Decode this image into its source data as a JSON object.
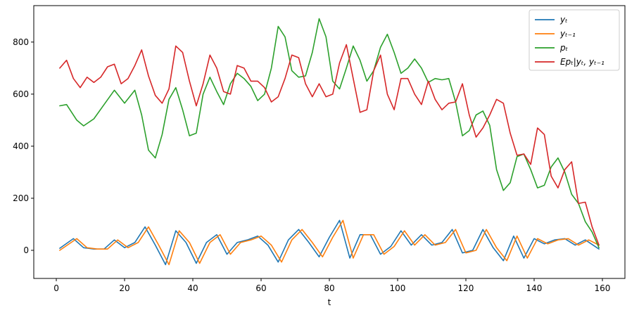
{
  "chart_data": {
    "type": "line",
    "title": "",
    "xlabel": "t",
    "ylabel": "",
    "xlim": [
      -6.6,
      166.6
    ],
    "ylim": [
      -108,
      940
    ],
    "xticks": [
      0,
      20,
      40,
      60,
      80,
      100,
      120,
      140,
      160
    ],
    "yticks": [
      0,
      200,
      400,
      600,
      800
    ],
    "grid": false,
    "legend_position": "top-right",
    "series": [
      {
        "name": "y_t",
        "legend_label": "yₜ",
        "color": "#1f77b4",
        "x": [
          1,
          5,
          8,
          11,
          14,
          17,
          20,
          23,
          26,
          29,
          32,
          35,
          38,
          41,
          44,
          47,
          50,
          53,
          56,
          59,
          62,
          65,
          68,
          71,
          74,
          77,
          80,
          83,
          86,
          89,
          92,
          95,
          98,
          101,
          104,
          107,
          110,
          113,
          116,
          119,
          122,
          125,
          128,
          131,
          134,
          137,
          140,
          143,
          146,
          149,
          152,
          155,
          159
        ],
        "y": [
          8,
          45,
          10,
          5,
          5,
          40,
          10,
          30,
          90,
          20,
          -55,
          75,
          30,
          -50,
          30,
          60,
          -15,
          30,
          40,
          55,
          20,
          -45,
          40,
          80,
          30,
          -25,
          50,
          115,
          -30,
          60,
          60,
          -15,
          15,
          75,
          20,
          60,
          20,
          30,
          80,
          -10,
          0,
          80,
          10,
          -40,
          55,
          -30,
          45,
          25,
          40,
          45,
          20,
          40,
          5
        ]
      },
      {
        "name": "y_{t-1}",
        "legend_label": "yₜ₋₁",
        "color": "#ff7f0e",
        "x": [
          1,
          6,
          9,
          12,
          15,
          18,
          21,
          24,
          27,
          30,
          33,
          36,
          39,
          42,
          45,
          48,
          51,
          54,
          57,
          60,
          63,
          66,
          69,
          72,
          75,
          78,
          81,
          84,
          87,
          90,
          93,
          96,
          99,
          102,
          105,
          108,
          111,
          114,
          117,
          120,
          123,
          126,
          129,
          132,
          135,
          138,
          141,
          144,
          147,
          150,
          153,
          156,
          159
        ],
        "y": [
          0,
          45,
          10,
          5,
          5,
          40,
          10,
          30,
          90,
          20,
          -55,
          75,
          30,
          -50,
          30,
          60,
          -15,
          30,
          40,
          55,
          20,
          -45,
          40,
          80,
          30,
          -25,
          50,
          115,
          -30,
          60,
          60,
          -15,
          15,
          75,
          20,
          60,
          20,
          30,
          80,
          -10,
          0,
          80,
          10,
          -40,
          55,
          -30,
          45,
          25,
          40,
          45,
          20,
          40,
          20
        ]
      },
      {
        "name": "p_t",
        "legend_label": "pₜ",
        "color": "#2ca02c",
        "x": [
          1,
          3,
          6,
          8,
          11,
          14,
          17,
          20,
          23,
          25,
          27,
          29,
          31,
          33,
          35,
          37,
          39,
          41,
          43,
          45,
          47,
          49,
          51,
          53,
          55,
          57,
          59,
          61,
          63,
          65,
          67,
          69,
          71,
          73,
          75,
          77,
          79,
          81,
          83,
          85,
          87,
          89,
          91,
          93,
          95,
          97,
          99,
          101,
          103,
          105,
          107,
          109,
          111,
          113,
          115,
          117,
          119,
          121,
          123,
          125,
          127,
          129,
          131,
          133,
          135,
          137,
          139,
          141,
          143,
          145,
          147,
          149,
          151,
          153,
          155,
          157,
          159
        ],
        "y": [
          555,
          560,
          500,
          478,
          505,
          560,
          615,
          565,
          615,
          520,
          385,
          355,
          445,
          580,
          625,
          540,
          440,
          450,
          600,
          665,
          610,
          560,
          640,
          680,
          660,
          630,
          575,
          600,
          700,
          860,
          820,
          690,
          665,
          670,
          760,
          890,
          820,
          650,
          620,
          700,
          785,
          730,
          650,
          690,
          780,
          830,
          760,
          680,
          700,
          735,
          700,
          645,
          660,
          655,
          660,
          570,
          440,
          460,
          520,
          535,
          480,
          310,
          230,
          260,
          360,
          370,
          310,
          240,
          250,
          320,
          355,
          300,
          215,
          180,
          110,
          70,
          10
        ]
      },
      {
        "name": "Ep_t|y_t, y_{t-1}",
        "legend_label": "Epₜ|yₜ, yₜ₋₁",
        "color": "#d62728",
        "x": [
          1,
          3,
          5,
          7,
          9,
          11,
          13,
          15,
          17,
          19,
          21,
          23,
          25,
          27,
          29,
          31,
          33,
          35,
          37,
          39,
          41,
          43,
          45,
          47,
          49,
          51,
          53,
          55,
          57,
          59,
          61,
          63,
          65,
          67,
          69,
          71,
          73,
          75,
          77,
          79,
          81,
          83,
          85,
          87,
          89,
          91,
          93,
          95,
          97,
          99,
          101,
          103,
          105,
          107,
          109,
          111,
          113,
          115,
          117,
          119,
          121,
          123,
          125,
          127,
          129,
          131,
          133,
          135,
          137,
          139,
          141,
          143,
          145,
          147,
          149,
          151,
          153,
          155,
          157,
          159
        ],
        "y": [
          700,
          730,
          660,
          625,
          665,
          645,
          665,
          705,
          715,
          640,
          660,
          710,
          770,
          670,
          595,
          565,
          620,
          785,
          760,
          650,
          555,
          640,
          750,
          700,
          610,
          600,
          710,
          700,
          650,
          650,
          625,
          570,
          590,
          660,
          750,
          740,
          640,
          590,
          640,
          590,
          600,
          720,
          790,
          660,
          530,
          540,
          690,
          750,
          600,
          540,
          660,
          660,
          600,
          560,
          650,
          580,
          540,
          565,
          570,
          640,
          520,
          435,
          470,
          520,
          580,
          565,
          450,
          365,
          370,
          330,
          470,
          445,
          285,
          240,
          310,
          340,
          180,
          185,
          90,
          20
        ]
      }
    ]
  }
}
